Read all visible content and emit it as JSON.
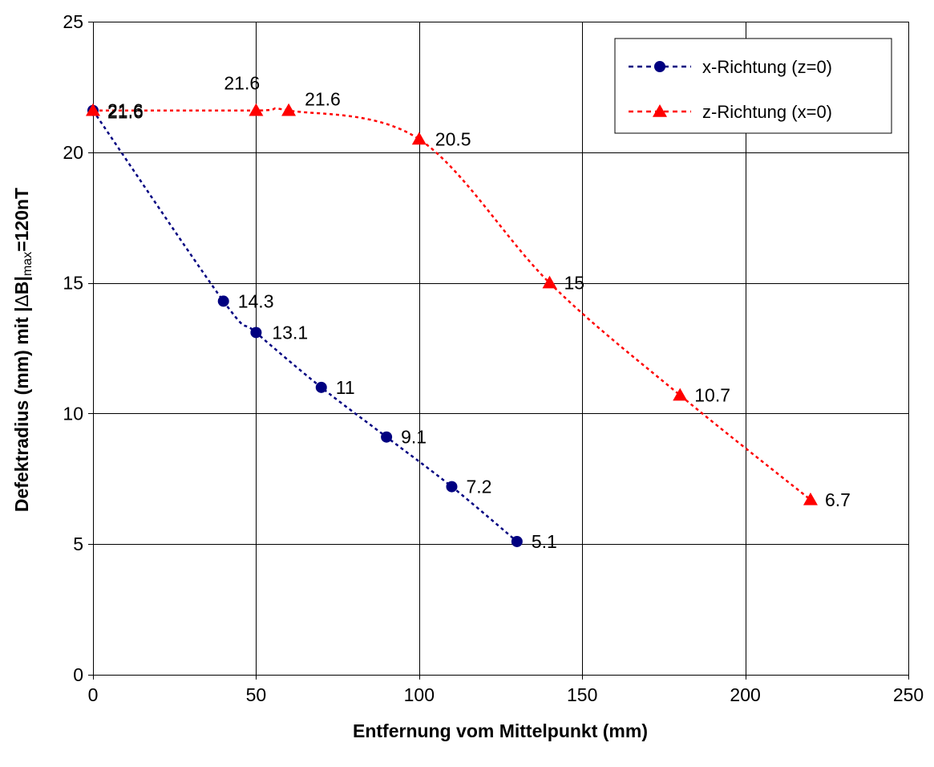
{
  "chart_data": {
    "type": "line",
    "title": "",
    "xlabel": "Entfernung vom Mittelpunkt (mm)",
    "ylabel": {
      "main": "Defektradius (mm) mit |",
      "delta": "Δ",
      "after_delta": "B|",
      "subscript": "max",
      "end": "=120nT"
    },
    "xlim": [
      0,
      250
    ],
    "ylim": [
      0,
      25
    ],
    "x_ticks": [
      "0",
      "50",
      "100",
      "150",
      "200",
      "250"
    ],
    "y_ticks": [
      "0",
      "5",
      "10",
      "15",
      "20",
      "25"
    ],
    "grid": true,
    "legend_position": "top-right",
    "series": [
      {
        "name": "x-Richtung (z=0)",
        "color": "#000080",
        "marker": "circle",
        "line_style": "dotted",
        "points": [
          {
            "x": 0,
            "y": 21.6,
            "label": "21.6"
          },
          {
            "x": 40,
            "y": 14.3,
            "label": "14.3"
          },
          {
            "x": 50,
            "y": 13.1,
            "label": "13.1"
          },
          {
            "x": 70,
            "y": 11,
            "label": "11"
          },
          {
            "x": 90,
            "y": 9.1,
            "label": "9.1"
          },
          {
            "x": 110,
            "y": 7.2,
            "label": "7.2"
          },
          {
            "x": 130,
            "y": 5.1,
            "label": "5.1"
          }
        ]
      },
      {
        "name": "z-Richtung (x=0)",
        "color": "#ff0000",
        "marker": "triangle",
        "line_style": "dotted",
        "points": [
          {
            "x": 0,
            "y": 21.6,
            "label": "21.6"
          },
          {
            "x": 50,
            "y": 21.6,
            "label": "21.6"
          },
          {
            "x": 60,
            "y": 21.6,
            "label": "21.6"
          },
          {
            "x": 100,
            "y": 20.5,
            "label": "20.5"
          },
          {
            "x": 140,
            "y": 15,
            "label": "15"
          },
          {
            "x": 180,
            "y": 10.7,
            "label": "10.7"
          },
          {
            "x": 220,
            "y": 6.7,
            "label": "6.7"
          }
        ]
      }
    ]
  }
}
